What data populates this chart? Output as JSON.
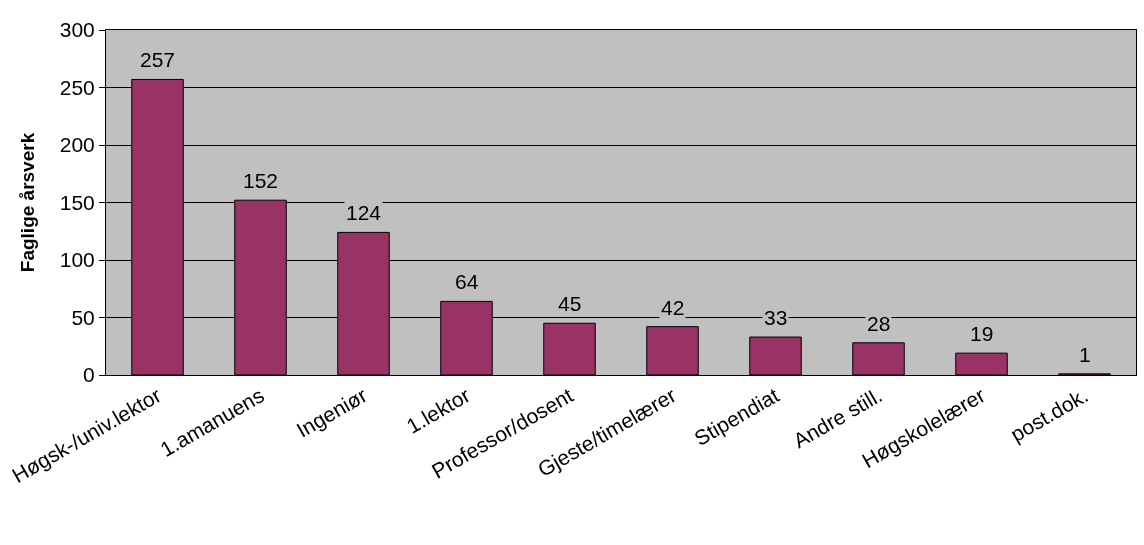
{
  "chart_data": {
    "type": "bar",
    "ylabel": "Faglige årsverk",
    "categories": [
      "Høgsk-/univ.lektor",
      "1.amanuens",
      "Ingeniør",
      "1.lektor",
      "Professor/dosent",
      "Gjeste/timelærer",
      "Stipendiat",
      "Andre still.",
      "Høgskolelærer",
      "post.dok."
    ],
    "values": [
      257,
      152,
      124,
      64,
      45,
      42,
      33,
      28,
      19,
      1
    ],
    "color": "#993366",
    "ylim": [
      0,
      300
    ],
    "yticks": [
      0,
      50,
      100,
      150,
      200,
      250,
      300
    ],
    "grid": "y",
    "data_labels": true
  }
}
